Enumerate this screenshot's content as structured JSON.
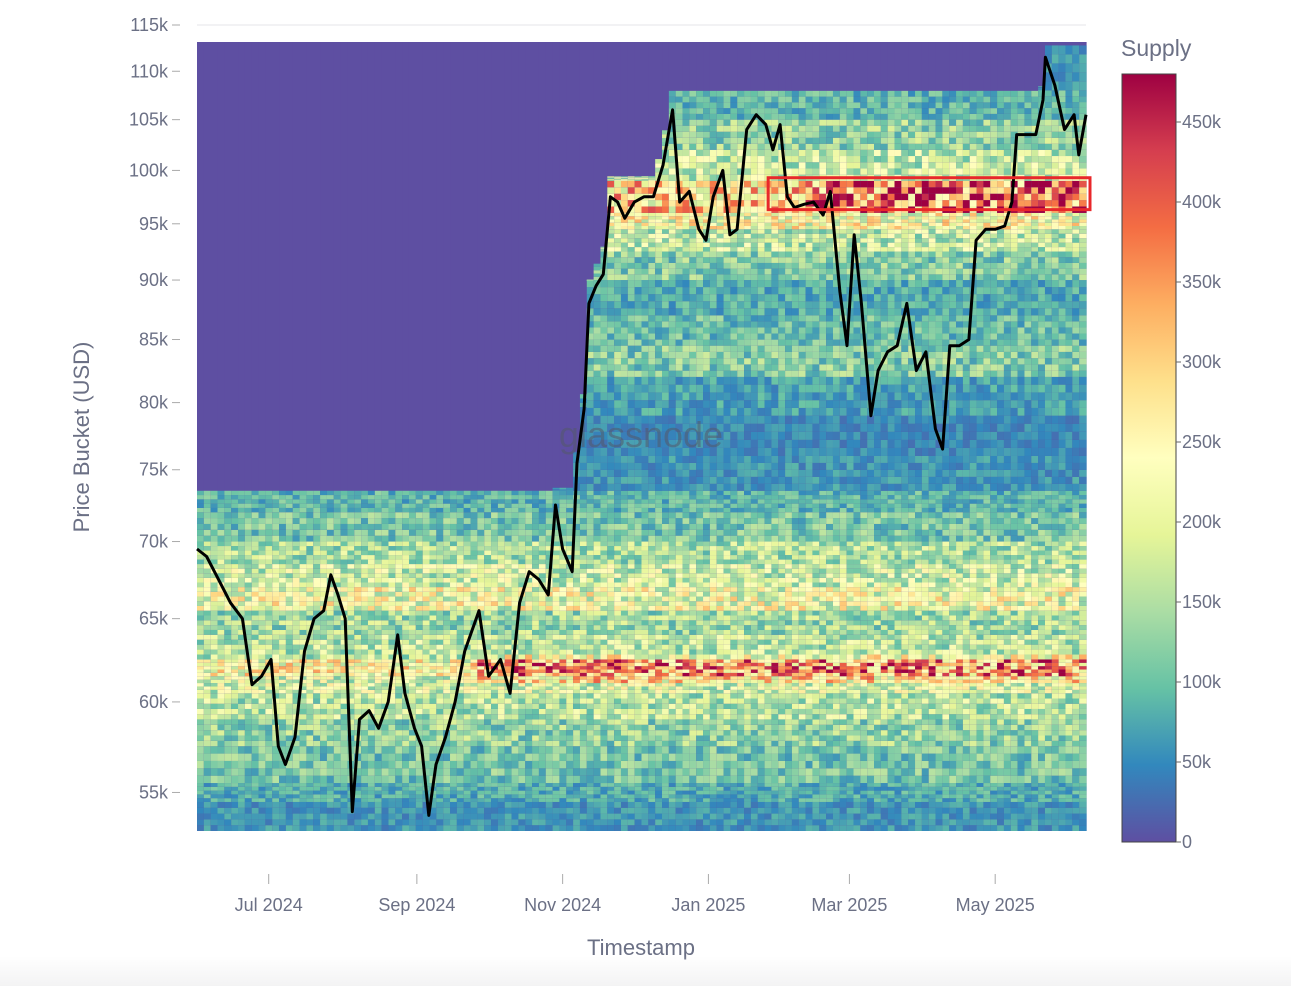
{
  "chart_data": {
    "type": "heatmap",
    "title": "",
    "xlabel": "Timestamp",
    "ylabel": "Price Bucket (USD)",
    "x_ticks": [
      "Jul 2024",
      "Sep 2024",
      "Nov 2024",
      "Jan 2025",
      "Mar 2025",
      "May 2025"
    ],
    "y_ticks": [
      "55k",
      "60k",
      "65k",
      "70k",
      "75k",
      "80k",
      "85k",
      "90k",
      "95k",
      "100k",
      "105k",
      "110k",
      "115k"
    ],
    "y_scale": "log",
    "ylim": [
      53000,
      115000
    ],
    "xlim": [
      "2024-06-01",
      "2025-06-08"
    ],
    "colorbar": {
      "title": "Supply",
      "ticks": [
        "0",
        "50k",
        "100k",
        "150k",
        "200k",
        "250k",
        "300k",
        "350k",
        "400k",
        "450k"
      ],
      "range": [
        0,
        480000
      ],
      "colorscale": "Spectral_r"
    },
    "watermark": "glassnode",
    "price_series": {
      "name": "",
      "color": "#000000",
      "points": [
        [
          "2024-06-01",
          69500
        ],
        [
          "2024-06-05",
          69000
        ],
        [
          "2024-06-10",
          67500
        ],
        [
          "2024-06-15",
          66000
        ],
        [
          "2024-06-20",
          65000
        ],
        [
          "2024-06-24",
          61000
        ],
        [
          "2024-06-28",
          61500
        ],
        [
          "2024-07-02",
          62500
        ],
        [
          "2024-07-05",
          57500
        ],
        [
          "2024-07-08",
          56500
        ],
        [
          "2024-07-12",
          58000
        ],
        [
          "2024-07-16",
          63000
        ],
        [
          "2024-07-20",
          65000
        ],
        [
          "2024-07-24",
          65500
        ],
        [
          "2024-07-27",
          67800
        ],
        [
          "2024-07-30",
          66500
        ],
        [
          "2024-08-02",
          65000
        ],
        [
          "2024-08-05",
          54000
        ],
        [
          "2024-08-08",
          59000
        ],
        [
          "2024-08-12",
          59500
        ],
        [
          "2024-08-16",
          58500
        ],
        [
          "2024-08-20",
          60000
        ],
        [
          "2024-08-24",
          64000
        ],
        [
          "2024-08-27",
          60500
        ],
        [
          "2024-08-31",
          58500
        ],
        [
          "2024-09-03",
          57500
        ],
        [
          "2024-09-06",
          53800
        ],
        [
          "2024-09-09",
          56500
        ],
        [
          "2024-09-13",
          58000
        ],
        [
          "2024-09-17",
          60000
        ],
        [
          "2024-09-21",
          63000
        ],
        [
          "2024-09-27",
          65500
        ],
        [
          "2024-10-01",
          61500
        ],
        [
          "2024-10-06",
          62500
        ],
        [
          "2024-10-10",
          60500
        ],
        [
          "2024-10-14",
          66000
        ],
        [
          "2024-10-18",
          68000
        ],
        [
          "2024-10-22",
          67500
        ],
        [
          "2024-10-26",
          66500
        ],
        [
          "2024-10-29",
          72500
        ],
        [
          "2024-11-01",
          69500
        ],
        [
          "2024-11-05",
          68000
        ],
        [
          "2024-11-07",
          75500
        ],
        [
          "2024-11-10",
          79500
        ],
        [
          "2024-11-12",
          88000
        ],
        [
          "2024-11-15",
          89500
        ],
        [
          "2024-11-18",
          90500
        ],
        [
          "2024-11-21",
          97500
        ],
        [
          "2024-11-24",
          97000
        ],
        [
          "2024-11-27",
          95500
        ],
        [
          "2024-12-01",
          97000
        ],
        [
          "2024-12-05",
          97500
        ],
        [
          "2024-12-09",
          97500
        ],
        [
          "2024-12-13",
          100500
        ],
        [
          "2024-12-17",
          106000
        ],
        [
          "2024-12-20",
          97000
        ],
        [
          "2024-12-24",
          98000
        ],
        [
          "2024-12-28",
          94500
        ],
        [
          "2024-12-31",
          93500
        ],
        [
          "2025-01-03",
          97500
        ],
        [
          "2025-01-07",
          100000
        ],
        [
          "2025-01-10",
          94000
        ],
        [
          "2025-01-13",
          94500
        ],
        [
          "2025-01-17",
          104000
        ],
        [
          "2025-01-21",
          105500
        ],
        [
          "2025-01-25",
          104500
        ],
        [
          "2025-01-28",
          102000
        ],
        [
          "2025-01-31",
          104500
        ],
        [
          "2025-02-03",
          97500
        ],
        [
          "2025-02-06",
          96500
        ],
        [
          "2025-02-10",
          96800
        ],
        [
          "2025-02-14",
          97000
        ],
        [
          "2025-02-18",
          95800
        ],
        [
          "2025-02-21",
          98000
        ],
        [
          "2025-02-25",
          89000
        ],
        [
          "2025-02-28",
          84500
        ],
        [
          "2025-03-03",
          94000
        ],
        [
          "2025-03-06",
          88000
        ],
        [
          "2025-03-10",
          79000
        ],
        [
          "2025-03-13",
          82500
        ],
        [
          "2025-03-17",
          84000
        ],
        [
          "2025-03-21",
          84500
        ],
        [
          "2025-03-25",
          88000
        ],
        [
          "2025-03-29",
          82500
        ],
        [
          "2025-04-02",
          84000
        ],
        [
          "2025-04-06",
          78000
        ],
        [
          "2025-04-09",
          76500
        ],
        [
          "2025-04-12",
          84500
        ],
        [
          "2025-04-16",
          84500
        ],
        [
          "2025-04-20",
          85000
        ],
        [
          "2025-04-23",
          93500
        ],
        [
          "2025-04-27",
          94500
        ],
        [
          "2025-05-01",
          94500
        ],
        [
          "2025-05-05",
          94800
        ],
        [
          "2025-05-08",
          97000
        ],
        [
          "2025-05-10",
          103500
        ],
        [
          "2025-05-14",
          103500
        ],
        [
          "2025-05-18",
          103500
        ],
        [
          "2025-05-21",
          107000
        ],
        [
          "2025-05-22",
          111500
        ],
        [
          "2025-05-26",
          108500
        ],
        [
          "2025-05-30",
          104000
        ],
        [
          "2025-06-03",
          105500
        ],
        [
          "2025-06-05",
          101500
        ],
        [
          "2025-06-08",
          105500
        ]
      ]
    },
    "supply_bands": [
      {
        "low": 53000,
        "high": 54500,
        "supply": 60000
      },
      {
        "low": 54500,
        "high": 55500,
        "supply": 80000
      },
      {
        "low": 55500,
        "high": 57500,
        "supply": 110000
      },
      {
        "low": 57500,
        "high": 59000,
        "supply": 130000
      },
      {
        "low": 59000,
        "high": 60500,
        "supply": 160000
      },
      {
        "low": 60500,
        "high": 61500,
        "supply": 190000
      },
      {
        "low": 61500,
        "high": 62500,
        "supply": 240000
      },
      {
        "low": 62500,
        "high": 64000,
        "supply": 160000
      },
      {
        "low": 64000,
        "high": 65500,
        "supply": 140000
      },
      {
        "low": 65500,
        "high": 67000,
        "supply": 220000
      },
      {
        "low": 67000,
        "high": 68500,
        "supply": 180000
      },
      {
        "low": 68500,
        "high": 70000,
        "supply": 150000
      },
      {
        "low": 70000,
        "high": 72000,
        "supply": 110000
      },
      {
        "low": 72000,
        "high": 73500,
        "supply": 90000
      },
      {
        "low": 73500,
        "high": 76000,
        "supply": 60000
      },
      {
        "low": 76000,
        "high": 79000,
        "supply": 50000
      },
      {
        "low": 79000,
        "high": 82000,
        "supply": 70000
      },
      {
        "low": 82000,
        "high": 84500,
        "supply": 120000
      },
      {
        "low": 84500,
        "high": 87000,
        "supply": 100000
      },
      {
        "low": 87000,
        "high": 90000,
        "supply": 80000
      },
      {
        "low": 90000,
        "high": 92500,
        "supply": 120000
      },
      {
        "low": 92500,
        "high": 94500,
        "supply": 170000
      },
      {
        "low": 94500,
        "high": 96000,
        "supply": 230000
      },
      {
        "low": 96000,
        "high": 99000,
        "supply": 290000
      },
      {
        "low": 99000,
        "high": 102000,
        "supply": 170000
      },
      {
        "low": 102000,
        "high": 105000,
        "supply": 130000
      },
      {
        "low": 105000,
        "high": 108000,
        "supply": 90000
      },
      {
        "low": 108000,
        "high": 113000,
        "supply": 60000
      }
    ],
    "highlight": {
      "label": "",
      "color": "#e8282b",
      "x_start": "2025-01-26",
      "x_end": "2025-06-10",
      "y_low": 96300,
      "y_high": 99300
    }
  }
}
